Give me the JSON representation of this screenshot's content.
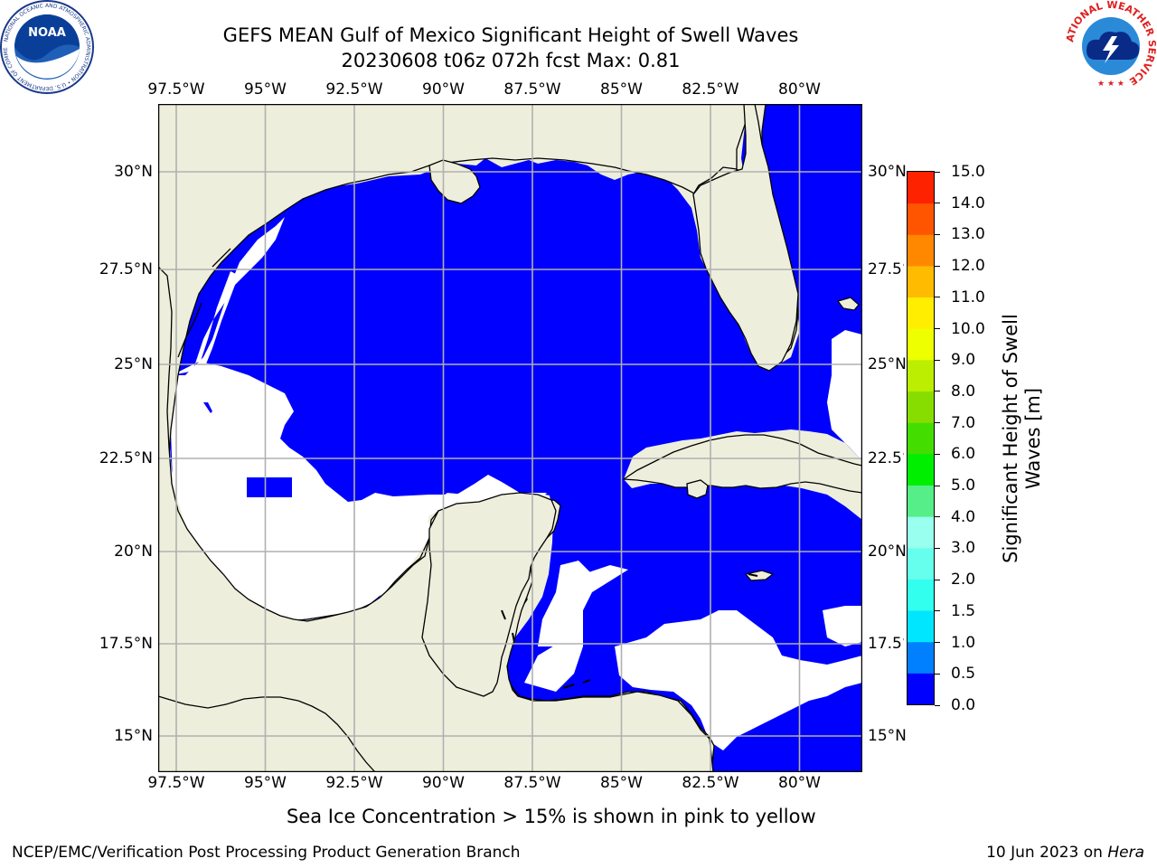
{
  "header": {
    "title_line1": "GEFS MEAN Gulf of Mexico Significant Height of Swell Waves",
    "title_line2": "20230608 t06z 072h fcst   Max: 0.81"
  },
  "logos": {
    "noaa": {
      "center_text": "NOAA",
      "ring_text": "NATIONAL OCEANIC AND ATMOSPHERIC ADMINISTRATION • U.S. DEPARTMENT OF COMMERCE"
    },
    "nws": {
      "ring_text": "NATIONAL WEATHER SERVICE"
    }
  },
  "map": {
    "lon_labels": [
      "97.5°W",
      "95°W",
      "92.5°W",
      "90°W",
      "87.5°W",
      "85°W",
      "82.5°W",
      "80°W"
    ],
    "lat_labels": [
      "30°N",
      "27.5°N",
      "25°N",
      "22.5°N",
      "20°N",
      "17.5°N",
      "15°N"
    ],
    "colors": {
      "land": "#eeeedd",
      "ocean_low": "#0000ff",
      "no_data": "#ffffff",
      "swell_0_5_1": "#0080ff",
      "grid": "#b0b0b0"
    }
  },
  "colorbar": {
    "label_line1": "Significant Height of Swell",
    "label_line2": "Waves [m]",
    "ticks": [
      "15.0",
      "14.0",
      "13.0",
      "12.0",
      "11.0",
      "10.0",
      "9.0",
      "8.0",
      "7.0",
      "6.0",
      "5.0",
      "4.0",
      "3.0",
      "2.0",
      "1.5",
      "1.0",
      "0.5",
      "0.0"
    ],
    "colors_bottom_to_top": [
      "#0000ff",
      "#0080ff",
      "#00e6ff",
      "#33ffee",
      "#66ffee",
      "#99ffee",
      "#55ee88",
      "#00ee00",
      "#44dd00",
      "#88dd00",
      "#bbee00",
      "#eeff00",
      "#ffee00",
      "#ffbb00",
      "#ff8800",
      "#ff5500",
      "#ff2200"
    ]
  },
  "notes": {
    "sea_ice": "Sea Ice Concentration > 15% is shown in pink to yellow"
  },
  "footer": {
    "left": "NCEP/EMC/Verification Post Processing Product Generation Branch",
    "right_prefix": "10 Jun 2023 on ",
    "right_host": "Hera"
  }
}
